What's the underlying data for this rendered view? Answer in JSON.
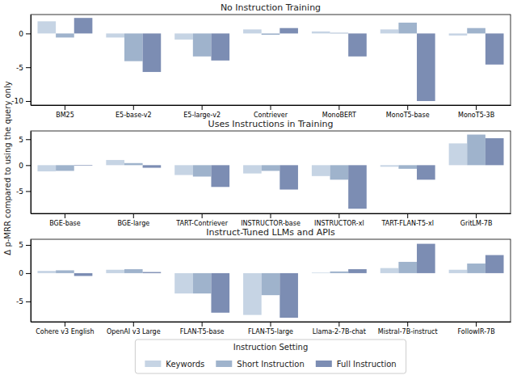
{
  "chart_data": [
    {
      "type": "bar",
      "title": "No Instruction Training",
      "categories": [
        "BM25",
        "E5-base-v2",
        "E5-large-v2",
        "Contriever",
        "MonoBERT",
        "MonoT5-base",
        "MonoT5-3B"
      ],
      "series": [
        {
          "color": "#c6d4e4",
          "values": [
            1.8,
            -0.6,
            -0.9,
            0.6,
            0.3,
            0.6,
            -0.3
          ]
        },
        {
          "color": "#9fb3cc",
          "values": [
            -0.6,
            -4.1,
            -3.4,
            -0.2,
            0.1,
            1.6,
            0.8
          ]
        },
        {
          "color": "#7c8db3",
          "values": [
            2.3,
            -5.7,
            -4.0,
            0.8,
            -3.4,
            -10.0,
            -4.6
          ]
        }
      ],
      "ylim": [
        -10.6,
        2.8
      ],
      "yticks": [
        -10,
        -5,
        0
      ]
    },
    {
      "type": "bar",
      "title": "Uses Instructions in Training",
      "y_label": "Δ p-MRR compared to using the query only",
      "categories": [
        "BGE-base",
        "BGE-large",
        "TART-Contriever",
        "INSTRUCTOR-base",
        "INSTRUCTOR-xl",
        "TART-FLAN-T5-xl",
        "GritLM-7B"
      ],
      "series": [
        {
          "color": "#c6d4e4",
          "values": [
            -1.2,
            1.0,
            -1.9,
            -1.6,
            -2.1,
            -0.3,
            4.2
          ]
        },
        {
          "color": "#9fb3cc",
          "values": [
            -1.1,
            0.4,
            -2.2,
            -1.1,
            -2.8,
            -0.7,
            5.9
          ]
        },
        {
          "color": "#7c8db3",
          "values": [
            -0.1,
            -0.5,
            -4.2,
            -4.7,
            -8.4,
            -2.8,
            5.2
          ]
        }
      ],
      "ylim": [
        -9.3,
        6.6
      ],
      "yticks": [
        -5,
        0,
        5
      ]
    },
    {
      "type": "bar",
      "title": "Instruct-Tuned LLMs and APIs",
      "categories": [
        "Cohere v3 English",
        "OpenAI v3 Large",
        "FLAN-T5-base",
        "FLAN-T5-large",
        "Llama-2-7B-chat",
        "Mistral-7B-instruct",
        "FollowIR-7B"
      ],
      "series": [
        {
          "name": "Keywords",
          "color": "#c6d4e4",
          "values": [
            0.4,
            0.6,
            -3.6,
            -7.4,
            0.1,
            0.9,
            0.6
          ]
        },
        {
          "name": "Short Instruction",
          "color": "#9fb3cc",
          "values": [
            0.5,
            0.7,
            -3.6,
            -3.9,
            0.3,
            2.0,
            1.7
          ]
        },
        {
          "name": "Full Instruction",
          "color": "#7c8db3",
          "values": [
            -0.5,
            0.2,
            -7.0,
            -7.9,
            0.7,
            5.2,
            3.2
          ]
        }
      ],
      "ylim": [
        -8.6,
        6.0
      ],
      "yticks": [
        -5,
        0,
        5
      ],
      "legend": "bottom",
      "legend_title": "Instruction Setting"
    }
  ]
}
